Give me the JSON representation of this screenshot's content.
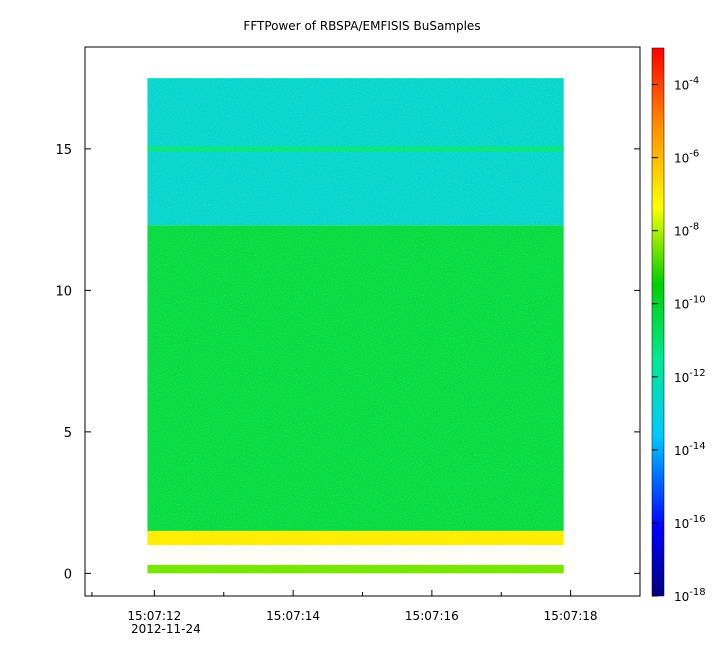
{
  "chart_data": {
    "type": "heatmap",
    "title": "FFTPower of RBSPA/EMFISIS  BuSamples",
    "xlabel": "",
    "ylabel": "",
    "date_label": "2012-11-24",
    "x_range": [
      "15:07:11.0",
      "15:07:19.0"
    ],
    "x_ticks": [
      {
        "time": "15:07:12",
        "label": "15:07:12"
      },
      {
        "time": "15:07:14",
        "label": "15:07:14"
      },
      {
        "time": "15:07:16",
        "label": "15:07:16"
      },
      {
        "time": "15:07:18",
        "label": "15:07:18"
      }
    ],
    "x_minor_ticks": [
      "15:07:11.1",
      "15:07:13",
      "15:07:15",
      "15:07:17",
      "15:07:19"
    ],
    "data_x_range": [
      "15:07:11.9",
      "15:07:17.9"
    ],
    "ylim": [
      -0.8,
      18.6
    ],
    "data_y_range": [
      0,
      17.5
    ],
    "y_ticks": [
      {
        "value": 0,
        "label": "0"
      },
      {
        "value": 5,
        "label": "5"
      },
      {
        "value": 10,
        "label": "10"
      },
      {
        "value": 15,
        "label": "15"
      }
    ],
    "colorbar": {
      "scale": "log",
      "range": [
        1e-18,
        0.001
      ],
      "ticks": [
        {
          "exp": -4,
          "base": "10",
          "sup": "-4"
        },
        {
          "exp": -6,
          "base": "10",
          "sup": "-6"
        },
        {
          "exp": -8,
          "base": "10",
          "sup": "-8"
        },
        {
          "exp": -10,
          "base": "10",
          "sup": "-10"
        },
        {
          "exp": -12,
          "base": "10",
          "sup": "-12"
        },
        {
          "exp": -14,
          "base": "10",
          "sup": "-14"
        },
        {
          "exp": -16,
          "base": "10",
          "sup": "-16"
        },
        {
          "exp": -18,
          "base": "10",
          "sup": "-18"
        }
      ]
    },
    "bands": [
      {
        "y_from": 12.3,
        "y_to": 17.5,
        "log_power": -12.8,
        "desc": "cyan-green upper band"
      },
      {
        "y_from": 14.9,
        "y_to": 15.1,
        "log_power": -11.3,
        "desc": "thin green line near 15"
      },
      {
        "y_from": 1.5,
        "y_to": 12.3,
        "log_power": -10.4,
        "desc": "green bulk"
      },
      {
        "y_from": 1.0,
        "y_to": 1.5,
        "log_power": -7.0,
        "desc": "orange/yellow emission near 1.2"
      },
      {
        "y_from": 0.0,
        "y_to": 0.3,
        "log_power": -8.5,
        "desc": "yellow band near 0"
      }
    ]
  }
}
